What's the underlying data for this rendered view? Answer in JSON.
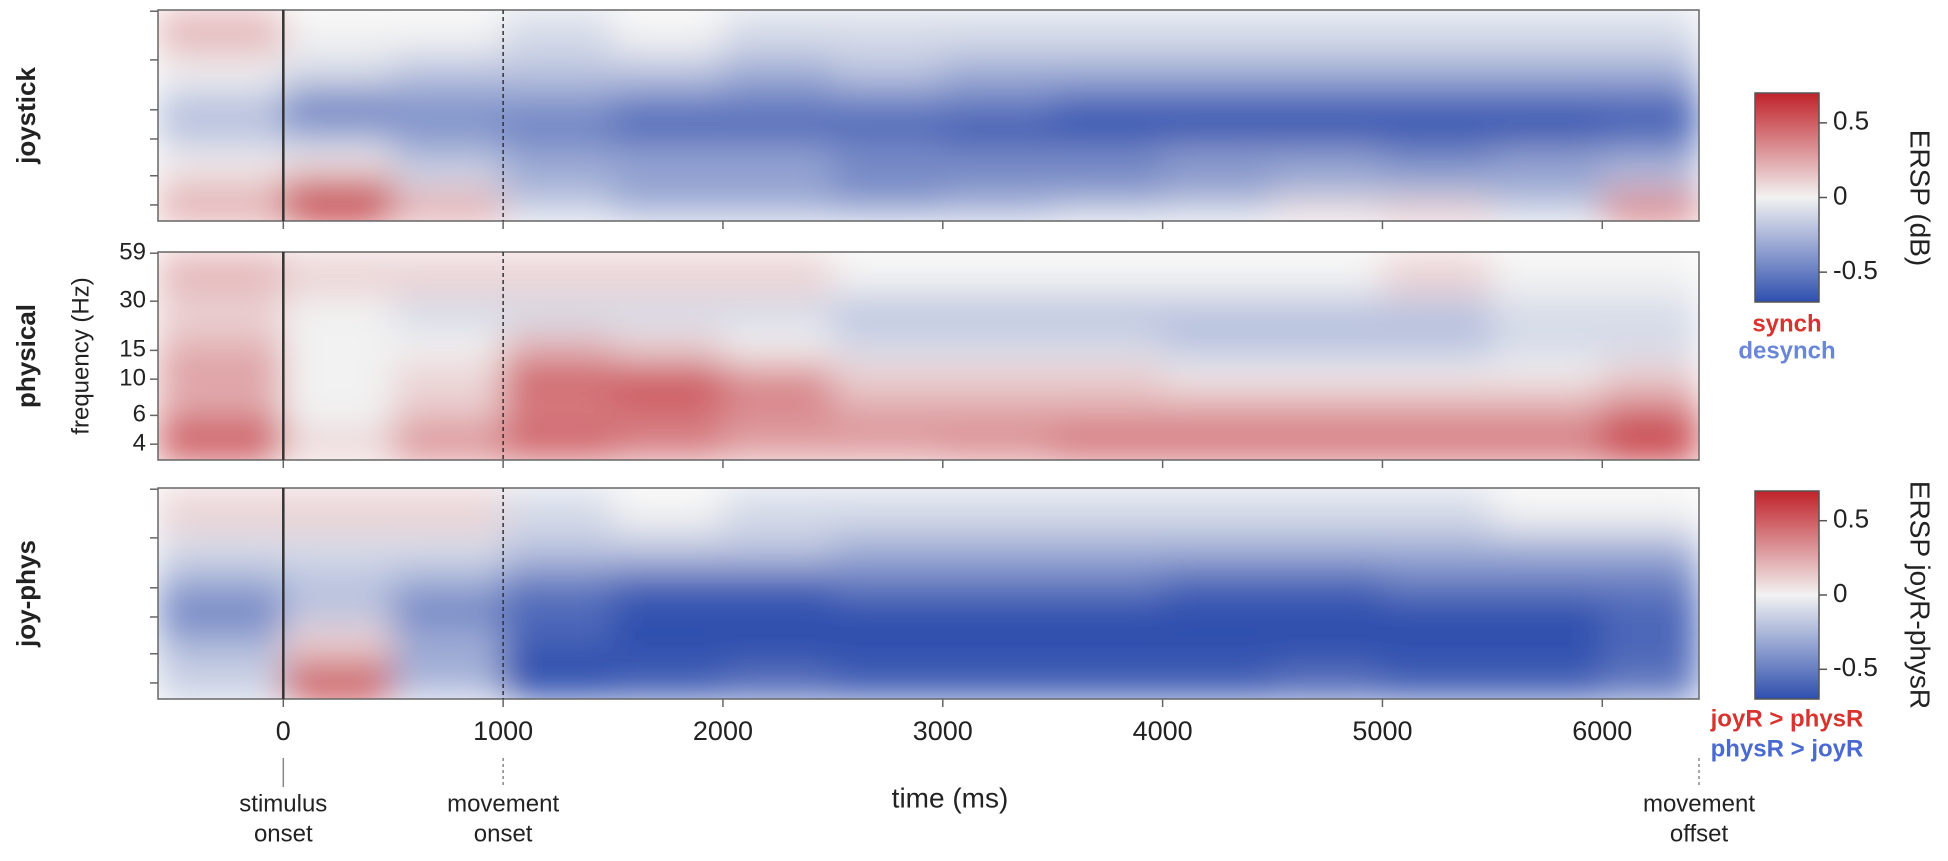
{
  "chart_data": {
    "type": "heatmap",
    "xlabel": "time (ms)",
    "ylabel": "frequency (Hz)",
    "xlim": [
      -570,
      6440
    ],
    "xticks": [
      0,
      1000,
      2000,
      3000,
      4000,
      5000,
      6000
    ],
    "ylim": [
      3.2,
      60
    ],
    "ylog": true,
    "yticks": [
      4,
      6,
      10,
      15,
      30,
      59
    ],
    "time_bins": [
      -570,
      0,
      500,
      1000,
      1500,
      2000,
      2500,
      3000,
      3500,
      4000,
      4500,
      5000,
      5500,
      6000,
      6440
    ],
    "freq_bins": [
      3.2,
      4,
      5,
      6.5,
      9,
      13,
      20,
      32,
      60
    ],
    "events": [
      {
        "value": 0,
        "label": [
          "stimulus",
          "onset"
        ],
        "style": "solid"
      },
      {
        "value": 1000,
        "label": [
          "movement",
          "onset"
        ],
        "style": "dashed"
      },
      {
        "value": 6440,
        "label": [
          "movement",
          "offset"
        ],
        "style": "dotted"
      }
    ],
    "panels": [
      {
        "name": "joystick",
        "colorbar": 0,
        "values": [
          [
            0.3,
            0.7,
            0.3,
            -0.1,
            -0.2,
            -0.2,
            -0.2,
            -0.2,
            -0.1,
            -0.1,
            0.1,
            0.2,
            -0.1,
            0.5
          ],
          [
            0.2,
            0.7,
            0.2,
            -0.2,
            -0.3,
            -0.3,
            -0.4,
            -0.3,
            -0.3,
            -0.2,
            -0.1,
            -0.1,
            -0.2,
            0.3
          ],
          [
            0.1,
            0.3,
            -0.1,
            -0.3,
            -0.4,
            -0.4,
            -0.5,
            -0.5,
            -0.5,
            -0.5,
            -0.4,
            -0.4,
            -0.4,
            -0.2
          ],
          [
            0,
            0,
            -0.2,
            -0.3,
            -0.3,
            -0.3,
            -0.4,
            -0.4,
            -0.4,
            -0.3,
            -0.3,
            -0.4,
            -0.3,
            -0.3
          ],
          [
            -0.2,
            -0.3,
            -0.4,
            -0.5,
            -0.6,
            -0.6,
            -0.6,
            -0.7,
            -0.7,
            -0.7,
            -0.7,
            -0.7,
            -0.7,
            -0.6
          ],
          [
            -0.2,
            -0.5,
            -0.4,
            -0.4,
            -0.5,
            -0.5,
            -0.5,
            -0.5,
            -0.6,
            -0.6,
            -0.6,
            -0.6,
            -0.6,
            -0.6
          ],
          [
            0,
            -0.1,
            -0.2,
            -0.2,
            -0.2,
            -0.3,
            -0.2,
            -0.3,
            -0.3,
            -0.3,
            -0.3,
            -0.3,
            -0.3,
            -0.3
          ],
          [
            0.2,
            0,
            0,
            -0.1,
            0,
            -0.1,
            -0.1,
            -0.1,
            -0.1,
            -0.1,
            -0.1,
            -0.1,
            -0.1,
            -0.1
          ]
        ]
      },
      {
        "name": "physical",
        "colorbar": 0,
        "values": [
          [
            0.6,
            0.1,
            0.4,
            0.5,
            0.4,
            0.3,
            0.3,
            0.4,
            0.5,
            0.5,
            0.5,
            0.5,
            0.5,
            0.7
          ],
          [
            0.5,
            0.1,
            0.3,
            0.5,
            0.4,
            0.3,
            0.3,
            0.3,
            0.4,
            0.4,
            0.4,
            0.4,
            0.4,
            0.6
          ],
          [
            0.4,
            0,
            0.2,
            0.4,
            0.4,
            0.3,
            0.3,
            0.3,
            0.3,
            0.3,
            0.3,
            0.3,
            0.3,
            0.5
          ],
          [
            0.2,
            0,
            0.1,
            0.4,
            0.5,
            0.4,
            0.2,
            0.2,
            0.2,
            0.2,
            0.2,
            0.2,
            0.2,
            0.3
          ],
          [
            0.3,
            0,
            0.1,
            0.5,
            0.5,
            0.3,
            0.1,
            0.1,
            0.1,
            0,
            0,
            0,
            0,
            0.1
          ],
          [
            0.2,
            0,
            0,
            0.2,
            0.1,
            0,
            -0.1,
            -0.1,
            -0.1,
            -0.2,
            -0.2,
            -0.2,
            -0.1,
            -0.1
          ],
          [
            0.1,
            0,
            -0.1,
            -0.1,
            -0.1,
            -0.1,
            -0.2,
            -0.2,
            -0.2,
            -0.2,
            -0.2,
            -0.2,
            -0.1,
            -0.1
          ],
          [
            0.2,
            0.1,
            0.1,
            0.1,
            0.1,
            0.1,
            0,
            0,
            0,
            0,
            0,
            0.1,
            0,
            0
          ]
        ]
      },
      {
        "name": "joy-phys",
        "colorbar": 1,
        "values": [
          [
            -0.2,
            0.7,
            -0.2,
            -0.7,
            -0.7,
            -0.7,
            -0.7,
            -0.7,
            -0.7,
            -0.7,
            -0.7,
            -0.7,
            -0.7,
            -0.6
          ],
          [
            -0.1,
            0.6,
            -0.3,
            -0.7,
            -0.6,
            -0.5,
            -0.6,
            -0.6,
            -0.6,
            -0.6,
            -0.5,
            -0.6,
            -0.6,
            -0.5
          ],
          [
            -0.2,
            0.2,
            -0.3,
            -0.7,
            -0.7,
            -0.7,
            -0.7,
            -0.7,
            -0.7,
            -0.7,
            -0.7,
            -0.7,
            -0.7,
            -0.6
          ],
          [
            -0.3,
            0.1,
            -0.3,
            -0.6,
            -0.7,
            -0.7,
            -0.7,
            -0.7,
            -0.7,
            -0.7,
            -0.7,
            -0.7,
            -0.7,
            -0.6
          ],
          [
            -0.5,
            -0.2,
            -0.5,
            -0.6,
            -0.7,
            -0.7,
            -0.7,
            -0.7,
            -0.7,
            -0.7,
            -0.7,
            -0.7,
            -0.7,
            -0.6
          ],
          [
            -0.3,
            -0.2,
            -0.3,
            -0.5,
            -0.6,
            -0.6,
            -0.5,
            -0.5,
            -0.5,
            -0.6,
            -0.6,
            -0.5,
            -0.5,
            -0.5
          ],
          [
            -0.1,
            -0.1,
            -0.1,
            -0.2,
            -0.2,
            -0.2,
            -0.3,
            -0.3,
            -0.3,
            -0.3,
            -0.3,
            -0.3,
            -0.3,
            -0.3
          ],
          [
            0.1,
            0.1,
            0.1,
            -0.1,
            0,
            -0.1,
            -0.1,
            -0.1,
            -0.1,
            -0.1,
            -0.1,
            -0.1,
            0,
            0
          ]
        ]
      }
    ],
    "colormap": [
      "#2f4fae",
      "#f2f2f2",
      "#c0222a"
    ],
    "colorbars": [
      {
        "label": "ERSP (dB)",
        "clim": [
          -0.7,
          0.7
        ],
        "ticks": [
          0.5,
          0,
          -0.5
        ],
        "legend": [
          {
            "text": "synch",
            "color": "#d8342f"
          },
          {
            "text": "desynch",
            "color": "#6a86d8"
          }
        ]
      },
      {
        "label": "ERSP joyR-physR",
        "clim": [
          -0.7,
          0.7
        ],
        "ticks": [
          0.5,
          0,
          -0.5
        ],
        "legend": [
          {
            "text": "joyR > physR",
            "color": "#d8342f"
          },
          {
            "text": "physR > joyR",
            "color": "#4a6ad0"
          }
        ]
      }
    ]
  }
}
